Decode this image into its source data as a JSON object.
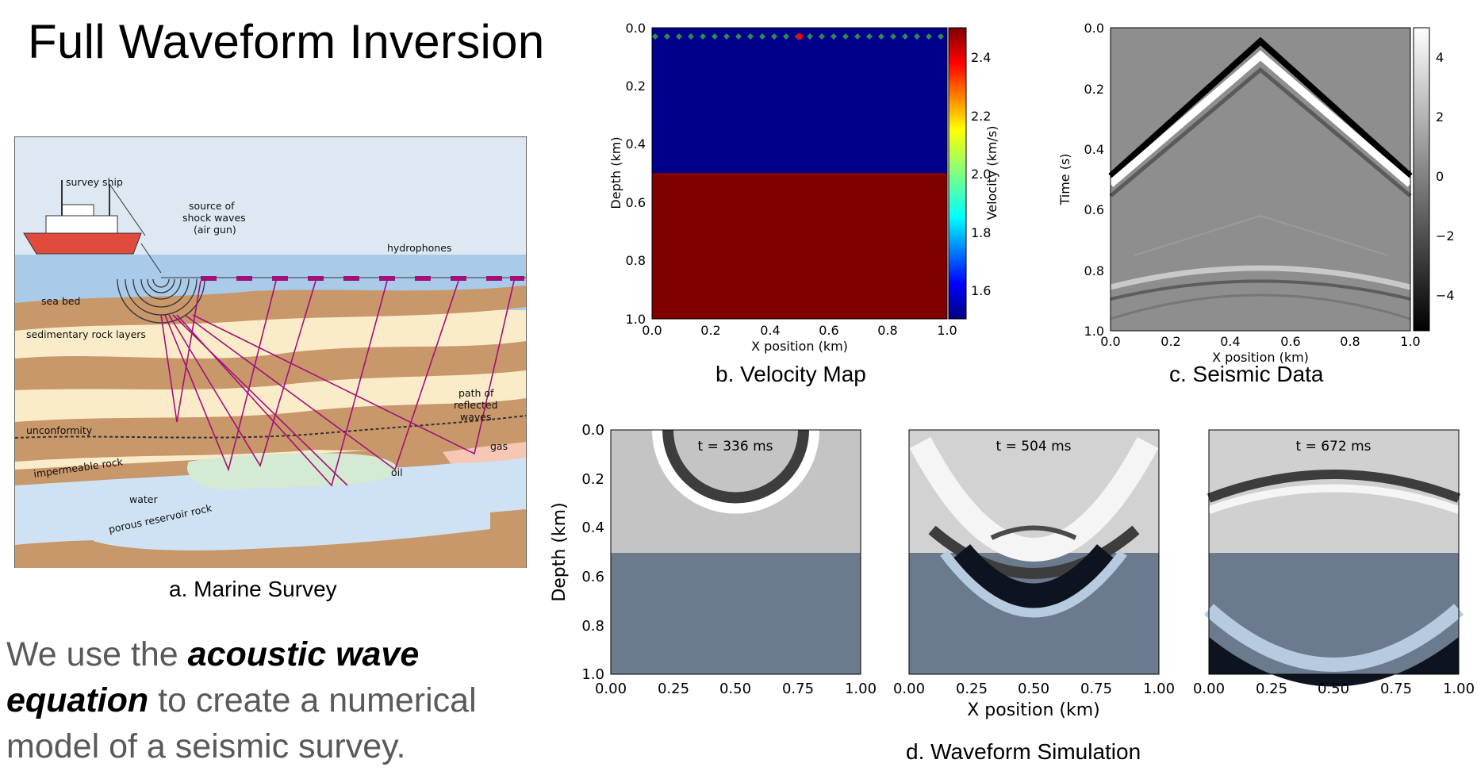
{
  "title": "Full Waveform Inversion",
  "intro": {
    "pre": "We use the ",
    "emphasis": "acoustic wave equation",
    "post": " to create a numerical model of a seismic survey."
  },
  "panel_a": {
    "caption": "a. Marine Survey",
    "labels": {
      "ship": "survey ship",
      "source": [
        "source of",
        "shock waves",
        "(air gun)"
      ],
      "hydrophones": "hydrophones",
      "seabed": "sea bed",
      "sedimentary": "sedimentary rock layers",
      "reflected": [
        "path of",
        "reflected",
        "waves"
      ],
      "unconformity": "unconformity",
      "impermeable": "impermeable rock",
      "water": "water",
      "oil": "oil",
      "gas": "gas",
      "porous": "porous reservoir rock"
    },
    "colors": {
      "sky": "#dde8f3",
      "sea": "#a9cbe9",
      "rock_dark": "#c8976a",
      "rock_light": "#fbecc9",
      "ship": "#e04b3c",
      "ray": "#a4107a"
    }
  },
  "panel_b": {
    "caption": "b. Velocity Map",
    "xlabel": "X position (km)",
    "ylabel": "Depth (km)",
    "colorbar_label": "Velocity (km/s)",
    "x_ticks": [
      "0.0",
      "0.2",
      "0.4",
      "0.6",
      "0.8",
      "1.0"
    ],
    "y_ticks": [
      "0.0",
      "0.2",
      "0.4",
      "0.6",
      "0.8",
      "1.0"
    ],
    "colorbar_ticks": [
      "2.4",
      "2.2",
      "2.0",
      "1.8",
      "1.6"
    ],
    "colors": {
      "upper_layer": "#00008b",
      "lower_layer": "#800000",
      "receivers": "#2e8b57",
      "source": "#ff0000"
    }
  },
  "panel_c": {
    "caption": "c. Seismic Data",
    "xlabel": "X position (km)",
    "ylabel": "Time (s)",
    "x_ticks": [
      "0.0",
      "0.2",
      "0.4",
      "0.6",
      "0.8",
      "1.0"
    ],
    "y_ticks": [
      "0.0",
      "0.2",
      "0.4",
      "0.6",
      "0.8",
      "1.0"
    ],
    "colorbar_ticks": [
      "4",
      "2",
      "0",
      "−2",
      "−4"
    ]
  },
  "panel_d": {
    "caption": "d. Waveform Simulation",
    "xlabel": "X position (km)",
    "ylabel": "Depth (km)",
    "x_ticks": [
      "0.00",
      "0.25",
      "0.50",
      "0.75",
      "1.00"
    ],
    "y_ticks": [
      "0.0",
      "0.2",
      "0.4",
      "0.6",
      "0.8",
      "1.0"
    ],
    "snapshots": [
      "t = 336 ms",
      "t = 504 ms",
      "t = 672 ms"
    ],
    "colors": {
      "upper": "#c4c4c4",
      "lower": "#6b7b8d"
    }
  }
}
